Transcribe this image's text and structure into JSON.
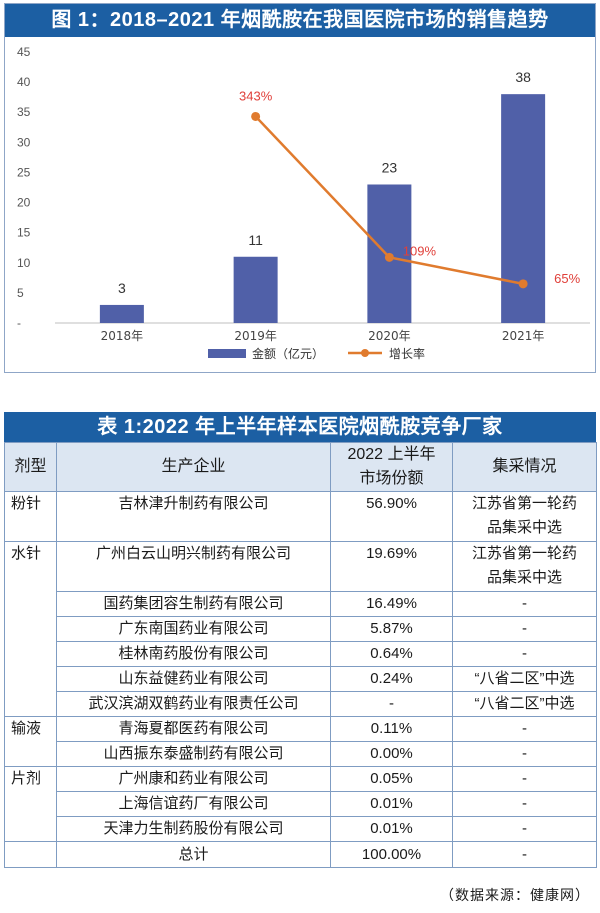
{
  "figure": {
    "title": "图 1：2018–2021 年烟酰胺在我国医院市场的销售趋势"
  },
  "chart_data": {
    "type": "bar",
    "categories": [
      "2018年",
      "2019年",
      "2020年",
      "2021年"
    ],
    "series": [
      {
        "name": "金额（亿元）",
        "type": "bar",
        "values": [
          3,
          11,
          23,
          38
        ],
        "labels": [
          "3",
          "11",
          "23",
          "38"
        ],
        "color": "#5060a8"
      },
      {
        "name": "增长率",
        "type": "line",
        "values": [
          null,
          343,
          109,
          65
        ],
        "labels": [
          "",
          "343%",
          "109%",
          "65%"
        ],
        "color": "#e07b2e",
        "label_color": "#e0403a"
      }
    ],
    "yticks": [
      "45",
      "40",
      "35",
      "30",
      "25",
      "20",
      "15",
      "10",
      "5",
      "-"
    ],
    "ylim": [
      0,
      45
    ],
    "ylim_rate": [
      0,
      450
    ],
    "grid": false,
    "legend": "bottom"
  },
  "table": {
    "title": "表 1:2022 年上半年样本医院烟酰胺竞争厂家",
    "headers": [
      "剂型",
      "生产企业",
      "2022 上半年\n市场份额",
      "集采情况"
    ],
    "groups": [
      {
        "type": "粉针",
        "rows": [
          {
            "company": "吉林津升制药有限公司",
            "share": "56.90%",
            "procurement": "江苏省第一轮药\n品集采中选"
          }
        ]
      },
      {
        "type": "水针",
        "rows": [
          {
            "company": "广州白云山明兴制药有限公司",
            "share": "19.69%",
            "procurement": "江苏省第一轮药\n品集采中选"
          },
          {
            "company": "国药集团容生制药有限公司",
            "share": "16.49%",
            "procurement": "-"
          },
          {
            "company": "广东南国药业有限公司",
            "share": "5.87%",
            "procurement": "-"
          },
          {
            "company": "桂林南药股份有限公司",
            "share": "0.64%",
            "procurement": "-"
          },
          {
            "company": "山东益健药业有限公司",
            "share": "0.24%",
            "procurement": "“八省二区”中选"
          },
          {
            "company": "武汉滨湖双鹤药业有限责任公司",
            "share": "-",
            "procurement": "“八省二区”中选"
          }
        ]
      },
      {
        "type": "输液",
        "rows": [
          {
            "company": "青海夏都医药有限公司",
            "share": "0.11%",
            "procurement": "-"
          },
          {
            "company": "山西振东泰盛制药有限公司",
            "share": "0.00%",
            "procurement": "-"
          }
        ]
      },
      {
        "type": "片剂",
        "rows": [
          {
            "company": "广州康和药业有限公司",
            "share": "0.05%",
            "procurement": "-"
          },
          {
            "company": "上海信谊药厂有限公司",
            "share": "0.01%",
            "procurement": "-"
          },
          {
            "company": "天津力生制药股份有限公司",
            "share": "0.01%",
            "procurement": "-"
          }
        ]
      }
    ],
    "total": {
      "label": "总计",
      "share": "100.00%",
      "procurement": "-"
    }
  },
  "source": "（数据来源：健康网）"
}
